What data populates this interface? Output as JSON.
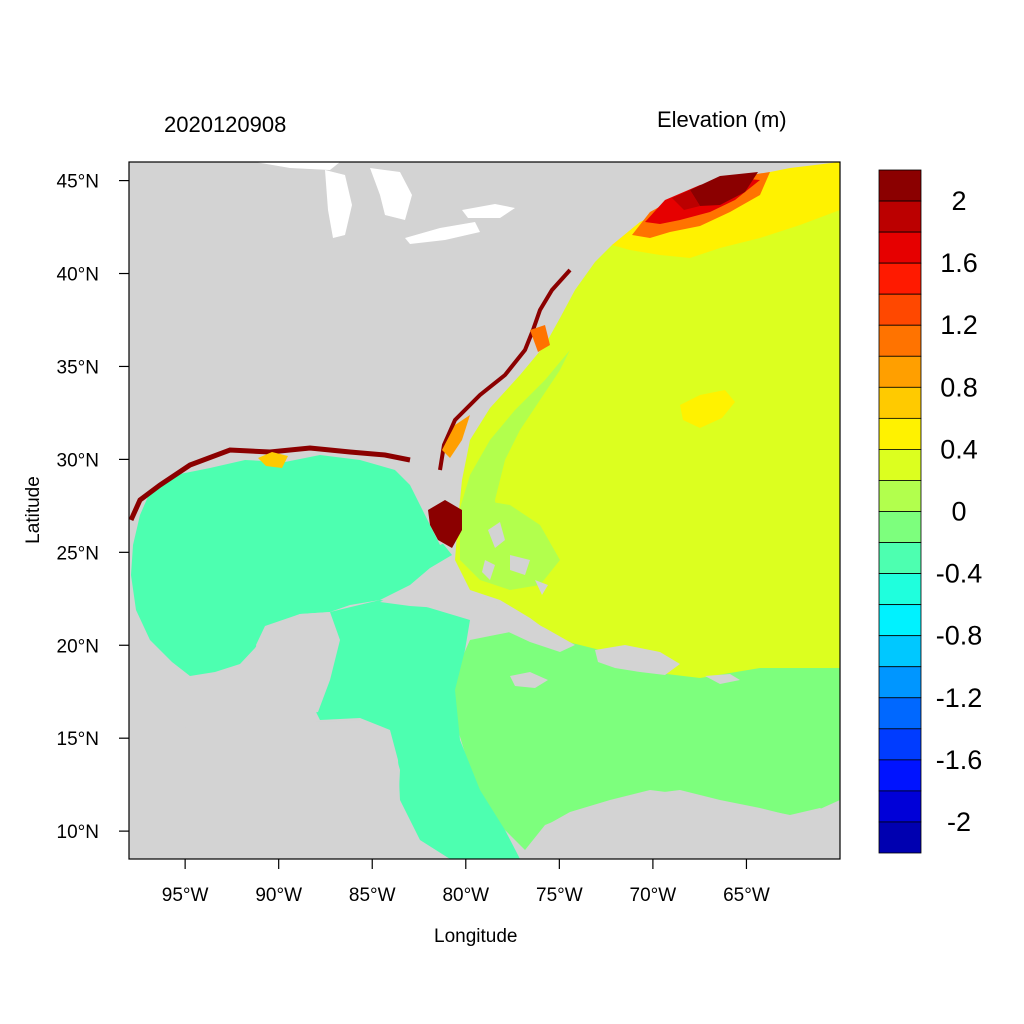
{
  "header": {
    "date_stamp": "2020120908",
    "field_title": "Elevation (m)"
  },
  "axes": {
    "x_title": "Longitude",
    "y_title": "Latitude",
    "lon_range": [
      -98,
      -60
    ],
    "lat_range": [
      8.5,
      46
    ],
    "x_ticks": [
      {
        "value": -95,
        "label": "95°W"
      },
      {
        "value": -90,
        "label": "90°W"
      },
      {
        "value": -85,
        "label": "85°W"
      },
      {
        "value": -80,
        "label": "80°W"
      },
      {
        "value": -75,
        "label": "75°W"
      },
      {
        "value": -70,
        "label": "70°W"
      },
      {
        "value": -65,
        "label": "65°W"
      }
    ],
    "y_ticks": [
      {
        "value": 45,
        "label": "45°N"
      },
      {
        "value": 40,
        "label": "40°N"
      },
      {
        "value": 35,
        "label": "35°N"
      },
      {
        "value": 30,
        "label": "30°N"
      },
      {
        "value": 25,
        "label": "25°N"
      },
      {
        "value": 20,
        "label": "20°N"
      },
      {
        "value": 15,
        "label": "15°N"
      },
      {
        "value": 10,
        "label": "10°N"
      }
    ]
  },
  "colorbar": {
    "colors_top_to_bottom": [
      "#8b0000",
      "#bb0000",
      "#e60000",
      "#ff1a00",
      "#ff4800",
      "#ff7300",
      "#ff9f00",
      "#ffca00",
      "#fff200",
      "#dcff1f",
      "#b2ff4d",
      "#7dff7d",
      "#4dffb0",
      "#1fffdd",
      "#00f2ff",
      "#00c8ff",
      "#0096ff",
      "#0068ff",
      "#003cff",
      "#0013ff",
      "#0000d8",
      "#0000b0"
    ],
    "labels_top_to_bottom": [
      "2",
      "1.6",
      "1.2",
      "0.8",
      "0.4",
      "0",
      "-0.4",
      "-0.8",
      "-1.2",
      "-1.6",
      "-2"
    ]
  },
  "colors": {
    "land": "#d3d3d3",
    "gulf_water": "#4dffb0",
    "caribbean_water": "#7dff7d",
    "atlantic_water": "#dcff1f",
    "surge_high": "#8b0000"
  }
}
